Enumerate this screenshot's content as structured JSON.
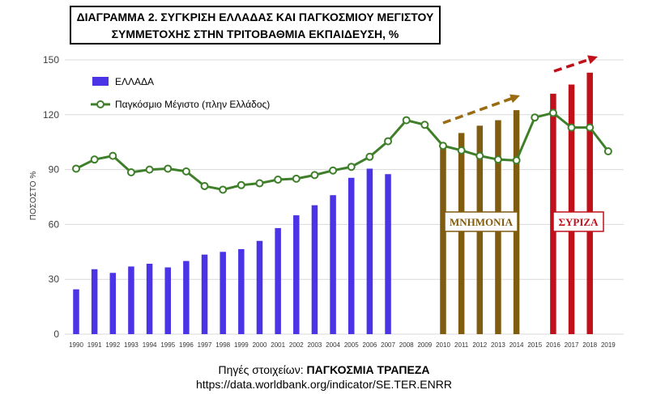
{
  "chart_data": {
    "type": "bar",
    "title": [
      "ΔΙΑΓΡΑΜΜΑ 2. ΣΥΓΚΡΙΣΗ ΕΛΛΑΔΑΣ ΚΑΙ ΠΑΓΚΟΣΜΙΟΥ ΜΕΓΙΣΤΟΥ",
      "ΣΥΜΜΕΤΟΧΗΣ ΣΤΗΝ ΤΡΙΤΟΒΑΘΜΙΑ ΕΚΠΑΙΔΕΥΣΗ, %"
    ],
    "ylabel": "ΠΟΣΟΣΤΟ %",
    "ylim": [
      0,
      150
    ],
    "yticks": [
      0,
      30,
      60,
      90,
      120,
      150
    ],
    "grid": true,
    "categories": [
      "1990",
      "1991",
      "1992",
      "1993",
      "1994",
      "1995",
      "1996",
      "1997",
      "1998",
      "1999",
      "2000",
      "2001",
      "2002",
      "2003",
      "2004",
      "2005",
      "2006",
      "2007",
      "2008",
      "2009",
      "2010",
      "2011",
      "2012",
      "2013",
      "2014",
      "2015",
      "2016",
      "2017",
      "2018",
      "2019"
    ],
    "series": [
      {
        "name": "ΕΛΛΑΔΑ",
        "type": "bar",
        "values": [
          24.5,
          35.5,
          33.5,
          37,
          38.5,
          36.5,
          40,
          43.5,
          45,
          46.5,
          51,
          58,
          65,
          70.5,
          76,
          85.5,
          90.5,
          87.5,
          null,
          null,
          103,
          110,
          114,
          117,
          122.5,
          null,
          131.5,
          136.5,
          143,
          null
        ]
      },
      {
        "name": "Παγκόσμιο Μέγιστο (πλην Ελλάδος)",
        "type": "line",
        "values": [
          90.5,
          95.5,
          97.5,
          88.5,
          90,
          90.5,
          89,
          81,
          79,
          81.5,
          82.5,
          84.5,
          85,
          87,
          89.5,
          91.5,
          97,
          105.5,
          117,
          114.5,
          103,
          100.5,
          97.5,
          95.5,
          95,
          118.5,
          121,
          113,
          113,
          100
        ]
      }
    ],
    "bar_colors": {
      "default": "#4b33e6",
      "memorandum": "#7f5c10",
      "syriza": "#c0111a"
    },
    "line_color": "#3f7f2a",
    "arrow_color": "#c0111a",
    "memorandum_arrow_color": "#9a6b10",
    "annotations": [
      {
        "text": "ΜΝΗΜΟΝΙΑ",
        "years": [
          "2010",
          "2014"
        ],
        "color": "#7f5c10"
      },
      {
        "text": "ΣΥΡΙΖΑ",
        "years": [
          "2016",
          "2018"
        ],
        "color": "#c0111a"
      }
    ],
    "legend_position": "top-left"
  },
  "source": {
    "label": "Πηγές στοιχείων: ",
    "value": "ΠΑΓΚΟΣΜΙΑ ΤΡΑΠΕΖΑ",
    "url": "https://data.worldbank.org/indicator/SE.TER.ENRR"
  }
}
